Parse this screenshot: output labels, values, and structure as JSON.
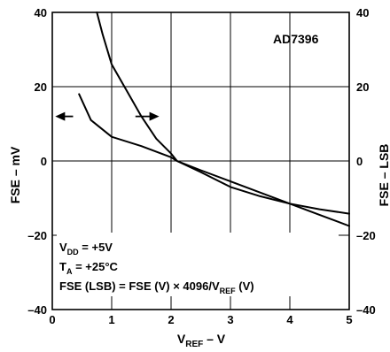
{
  "chart_data": {
    "type": "line",
    "model_label": "AD7396",
    "xlabel": {
      "main": "V",
      "sub": "REF",
      "tail": " – V"
    },
    "ylabel_left": "FSE – mV",
    "ylabel_right": "FSE – LSB",
    "xlim": [
      0,
      5
    ],
    "ylim": [
      -40,
      40
    ],
    "x_ticks": [
      "0",
      "1",
      "2",
      "3",
      "4",
      "5"
    ],
    "y_ticks_left": [
      "40",
      "20",
      "0",
      "–20",
      "–40"
    ],
    "y_ticks_right": [
      "40",
      "20",
      "0",
      "–20",
      "–40"
    ],
    "grid": true,
    "notes": {
      "vdd": {
        "a": "V",
        "sub": "DD",
        "b": " = +5V"
      },
      "ta": {
        "a": "T",
        "sub": "A",
        "b": " = +25°C"
      },
      "fse": {
        "a": "FSE (LSB) = FSE (V) × 4096/V",
        "sub": "REF",
        "b": " (V)"
      }
    },
    "series": [
      {
        "axis": "left",
        "x": [
          0.75,
          0.85,
          1.0,
          1.25,
          1.5,
          1.75,
          2.0,
          2.1,
          2.5,
          3.0,
          3.5,
          4.0,
          4.5,
          5.0
        ],
        "y": [
          40,
          34,
          26,
          19,
          12,
          6,
          2,
          0,
          -3,
          -7,
          -9.5,
          -11.5,
          -13,
          -14.2
        ]
      },
      {
        "axis": "right",
        "x": [
          0.45,
          0.65,
          1.0,
          1.5,
          2.0,
          2.1,
          2.5,
          3.0,
          3.5,
          4.0,
          4.5,
          5.0
        ],
        "y": [
          18,
          11,
          6.5,
          4,
          1,
          0,
          -2.5,
          -5.5,
          -8.5,
          -11.5,
          -14.5,
          -17.5
        ]
      }
    ],
    "arrows": [
      {
        "direction": "left",
        "x_from": 0.35,
        "x_to": 0.05,
        "y": 12
      },
      {
        "direction": "right",
        "x_from": 1.4,
        "x_to": 1.8,
        "y": 12
      }
    ]
  }
}
